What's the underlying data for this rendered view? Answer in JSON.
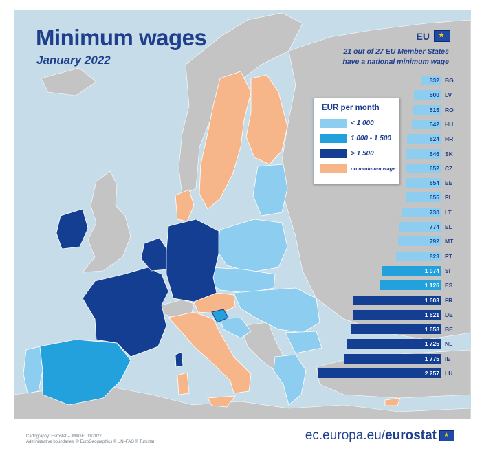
{
  "title": "Minimum wages",
  "subtitle": "January 2022",
  "eu_label": "EU",
  "note_line1": "21 out of 27 EU Member States",
  "note_line2": "have a national minimum wage",
  "legend": {
    "title": "EUR per month",
    "items": [
      {
        "label": "< 1 000",
        "color": "#8dcdef"
      },
      {
        "label": "1 000 - 1 500",
        "color": "#23a1dc"
      },
      {
        "label": "> 1 500",
        "color": "#133e91"
      },
      {
        "label": "no minimum wage",
        "color": "#f6b689"
      }
    ]
  },
  "colors": {
    "sea": "#c6dde9",
    "non_eu_land": "#c4c4c4",
    "low": "#8dcdef",
    "mid": "#23a1dc",
    "high": "#133e91",
    "none": "#f6b689",
    "bar_low": "#8dcdef",
    "bar_mid": "#23a1dc",
    "bar_high": "#133e91"
  },
  "wages": [
    {
      "code": "BG",
      "value": "332",
      "num": 332
    },
    {
      "code": "LV",
      "value": "500",
      "num": 500
    },
    {
      "code": "RO",
      "value": "515",
      "num": 515
    },
    {
      "code": "HU",
      "value": "542",
      "num": 542
    },
    {
      "code": "HR",
      "value": "624",
      "num": 624
    },
    {
      "code": "SK",
      "value": "646",
      "num": 646
    },
    {
      "code": "CZ",
      "value": "652",
      "num": 652
    },
    {
      "code": "EE",
      "value": "654",
      "num": 654
    },
    {
      "code": "PL",
      "value": "655",
      "num": 655
    },
    {
      "code": "LT",
      "value": "730",
      "num": 730
    },
    {
      "code": "EL",
      "value": "774",
      "num": 774
    },
    {
      "code": "MT",
      "value": "792",
      "num": 792
    },
    {
      "code": "PT",
      "value": "823",
      "num": 823
    },
    {
      "code": "SI",
      "value": "1 074",
      "num": 1074
    },
    {
      "code": "ES",
      "value": "1 126",
      "num": 1126
    },
    {
      "code": "FR",
      "value": "1 603",
      "num": 1603
    },
    {
      "code": "DE",
      "value": "1 621",
      "num": 1621
    },
    {
      "code": "BE",
      "value": "1 658",
      "num": 1658
    },
    {
      "code": "NL",
      "value": "1 725",
      "num": 1725
    },
    {
      "code": "IE",
      "value": "1 775",
      "num": 1775
    },
    {
      "code": "LU",
      "value": "2 257",
      "num": 2257
    }
  ],
  "credits_line1": "Cartography: Eurostat – IMAGE, 01/2022",
  "credits_line2": "Administrative boundaries: © EuroGeographics © UN–FAO © Turkstat",
  "source_prefix": "ec.europa.eu/",
  "source_brand": "eurostat"
}
